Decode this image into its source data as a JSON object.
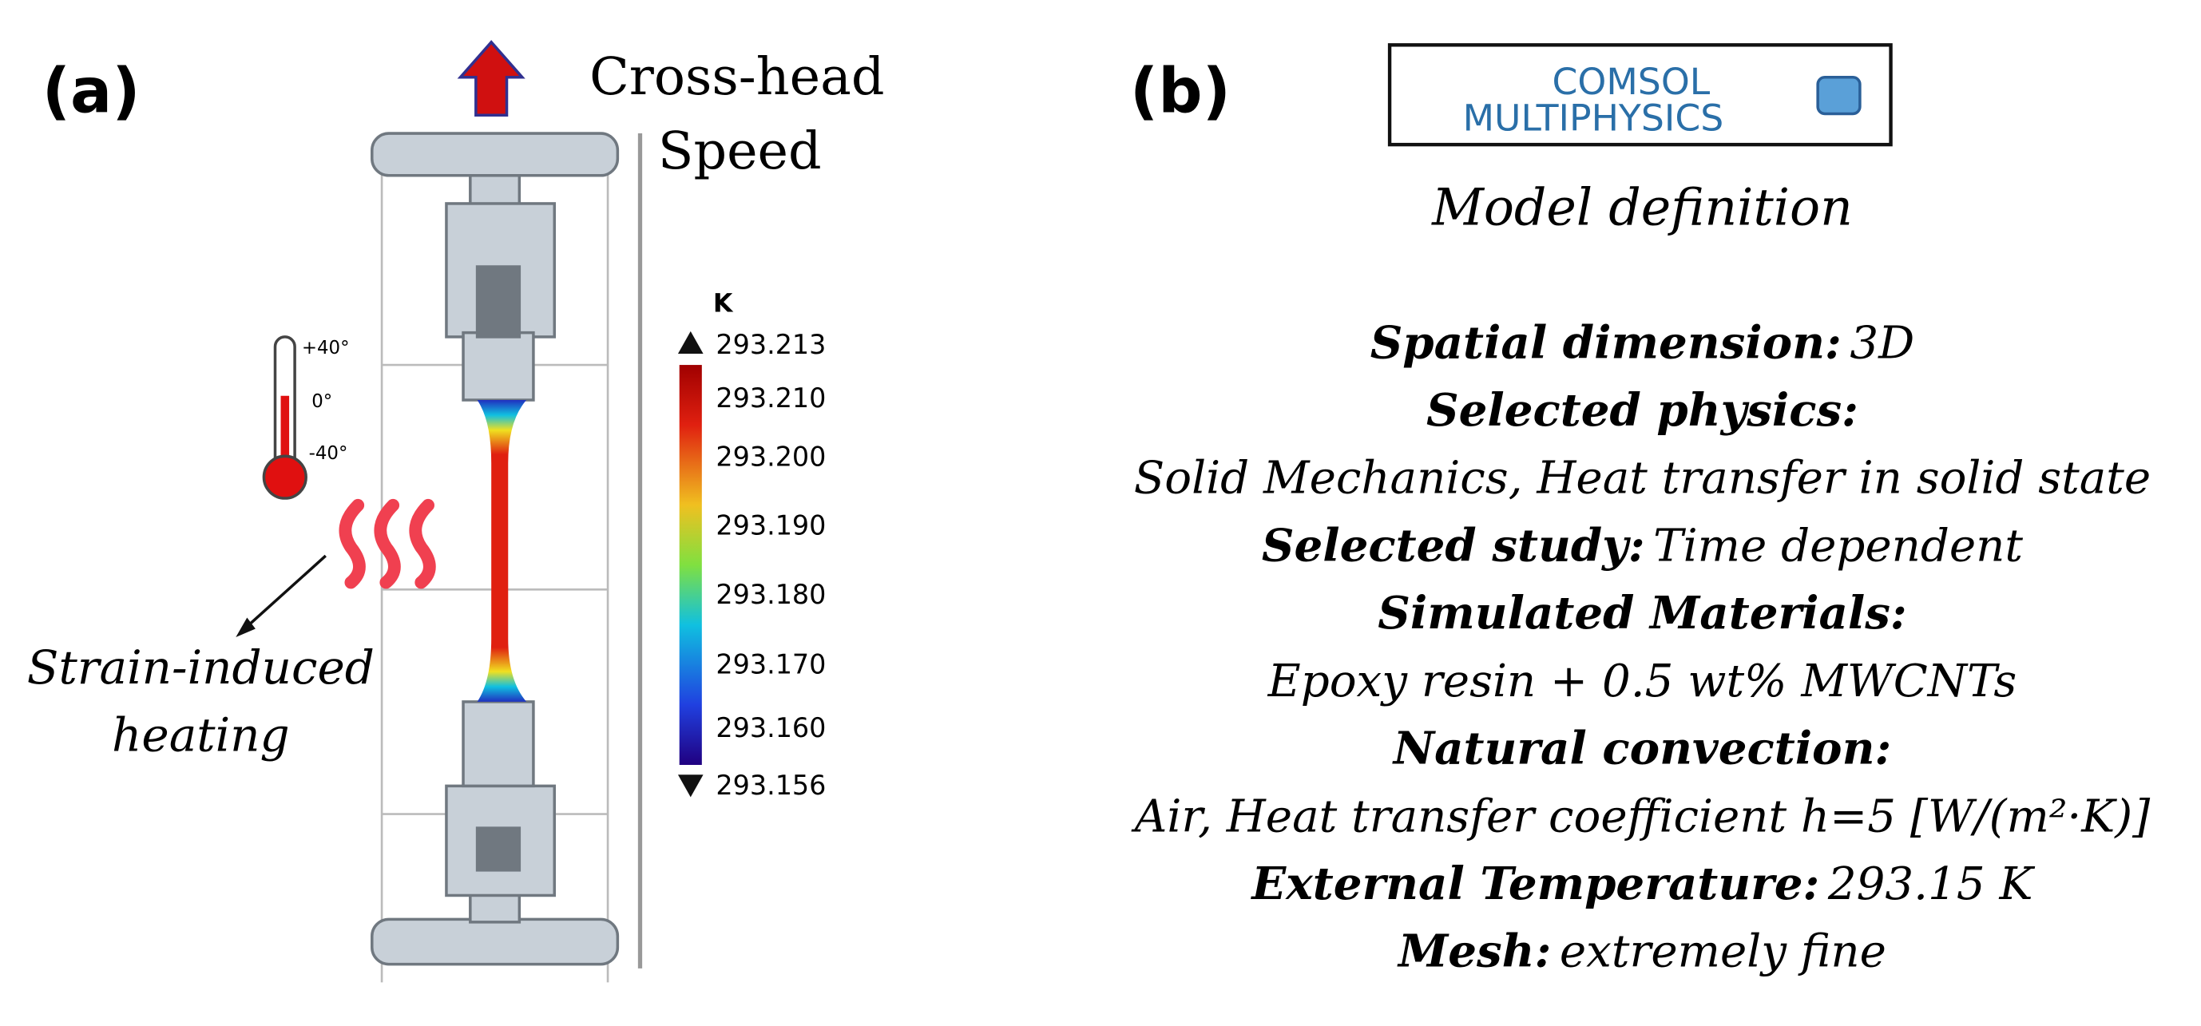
{
  "panel_a": {
    "label": "(a)",
    "crosshead": [
      "Cross-head",
      "Speed"
    ],
    "colorbar": {
      "unit": "K",
      "labels": [
        "293.213",
        "293.210",
        "293.200",
        "293.190",
        "293.180",
        "293.170",
        "293.160",
        "293.156"
      ]
    },
    "thermometer": [
      "+40°",
      "0°",
      "-40°"
    ],
    "heating": [
      "Strain-induced",
      "heating"
    ]
  },
  "panel_b": {
    "label": "(b)",
    "logo": [
      "COMSOL",
      "MULTIPHYSICS"
    ],
    "heading": "Model definition",
    "lines": [
      {
        "label": "Spatial dimension:",
        "value": "3D"
      },
      {
        "label": "Selected physics:"
      },
      {
        "value": "Solid Mechanics, Heat transfer in solid state"
      },
      {
        "label": "Selected study:",
        "value": "Time dependent"
      },
      {
        "label": "Simulated Materials:"
      },
      {
        "value": "Epoxy resin + 0.5 wt% MWCNTs"
      },
      {
        "label": "Natural convection:"
      },
      {
        "value": "Air, Heat transfer coefficient h=5 [W/(m²·K)]"
      },
      {
        "label": "External Temperature:",
        "value": "293.15 K"
      },
      {
        "label": "Mesh:",
        "value": "extremely fine"
      }
    ]
  }
}
